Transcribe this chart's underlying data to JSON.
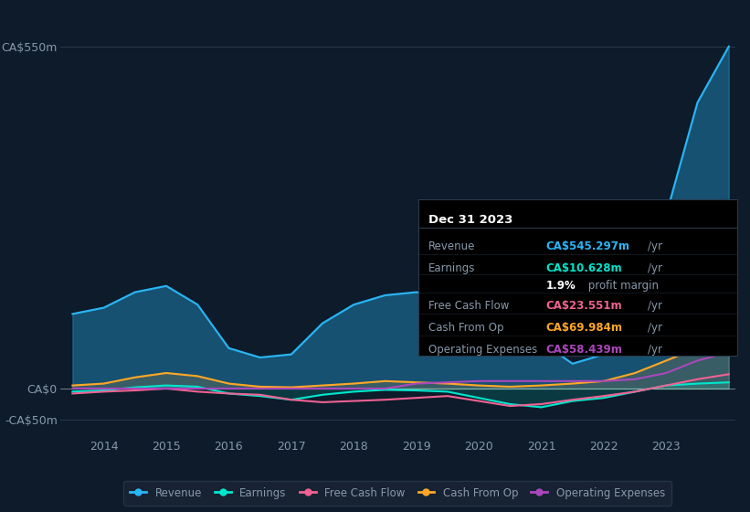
{
  "background_color": "#0d1b2a",
  "plot_bg_color": "#0d1b2a",
  "grid_color": "#2a3a4a",
  "text_color": "#8899aa",
  "title_color": "#ffffff",
  "ylim": [
    -75,
    600
  ],
  "yticks": [
    -50,
    0,
    550
  ],
  "ytick_labels": [
    "-CA$50m",
    "CA$0",
    "CA$550m"
  ],
  "years": [
    2013.5,
    2014,
    2014.5,
    2015,
    2015.5,
    2016,
    2016.5,
    2017,
    2017.5,
    2018,
    2018.5,
    2019,
    2019.5,
    2020,
    2020.5,
    2021,
    2021.5,
    2022,
    2022.5,
    2023,
    2023.5,
    2024
  ],
  "xtick_positions": [
    2014,
    2015,
    2016,
    2017,
    2018,
    2019,
    2020,
    2021,
    2022,
    2023
  ],
  "xtick_labels": [
    "2014",
    "2015",
    "2016",
    "2017",
    "2018",
    "2019",
    "2020",
    "2021",
    "2022",
    "2023"
  ],
  "revenue": [
    120,
    130,
    155,
    165,
    135,
    65,
    50,
    55,
    105,
    135,
    150,
    155,
    148,
    135,
    90,
    75,
    40,
    55,
    120,
    280,
    460,
    550
  ],
  "earnings": [
    -5,
    -3,
    2,
    5,
    3,
    -8,
    -12,
    -18,
    -10,
    -5,
    -2,
    -3,
    -5,
    -15,
    -25,
    -30,
    -20,
    -15,
    -5,
    5,
    8,
    10
  ],
  "free_cash_flow": [
    -8,
    -5,
    -3,
    0,
    -5,
    -8,
    -10,
    -18,
    -22,
    -20,
    -18,
    -15,
    -12,
    -20,
    -28,
    -25,
    -18,
    -12,
    -5,
    5,
    15,
    23
  ],
  "cash_from_op": [
    5,
    8,
    18,
    25,
    20,
    8,
    3,
    2,
    5,
    8,
    12,
    10,
    8,
    5,
    3,
    5,
    8,
    12,
    25,
    45,
    65,
    70
  ],
  "operating_expenses": [
    0,
    0,
    0,
    0,
    0,
    0,
    0,
    0,
    0,
    0,
    0,
    8,
    10,
    12,
    12,
    12,
    12,
    12,
    15,
    25,
    45,
    58
  ],
  "revenue_color": "#29b6f6",
  "earnings_color": "#00e5cc",
  "free_cash_flow_color": "#f06292",
  "cash_from_op_color": "#ffa726",
  "operating_expenses_color": "#ab47bc",
  "revenue_fill_alpha": 0.35,
  "line_width": 1.5,
  "legend_bg": "#1a2535",
  "legend_border": "#2a3a4a",
  "tooltip_bg": "#000000",
  "tooltip_border": "#2a3a4a",
  "tooltip_title": "Dec 31 2023",
  "tooltip_rows": [
    {
      "label": "Revenue",
      "value": "CA$545.297m /yr",
      "color": "#29b6f6"
    },
    {
      "label": "Earnings",
      "value": "CA$10.628m /yr",
      "color": "#00e5cc"
    },
    {
      "label": "",
      "value": "1.9% profit margin",
      "color": "#ffffff"
    },
    {
      "label": "Free Cash Flow",
      "value": "CA$23.551m /yr",
      "color": "#f06292"
    },
    {
      "label": "Cash From Op",
      "value": "CA$69.984m /yr",
      "color": "#ffa726"
    },
    {
      "label": "Operating Expenses",
      "value": "CA$58.439m /yr",
      "color": "#ab47bc"
    }
  ]
}
